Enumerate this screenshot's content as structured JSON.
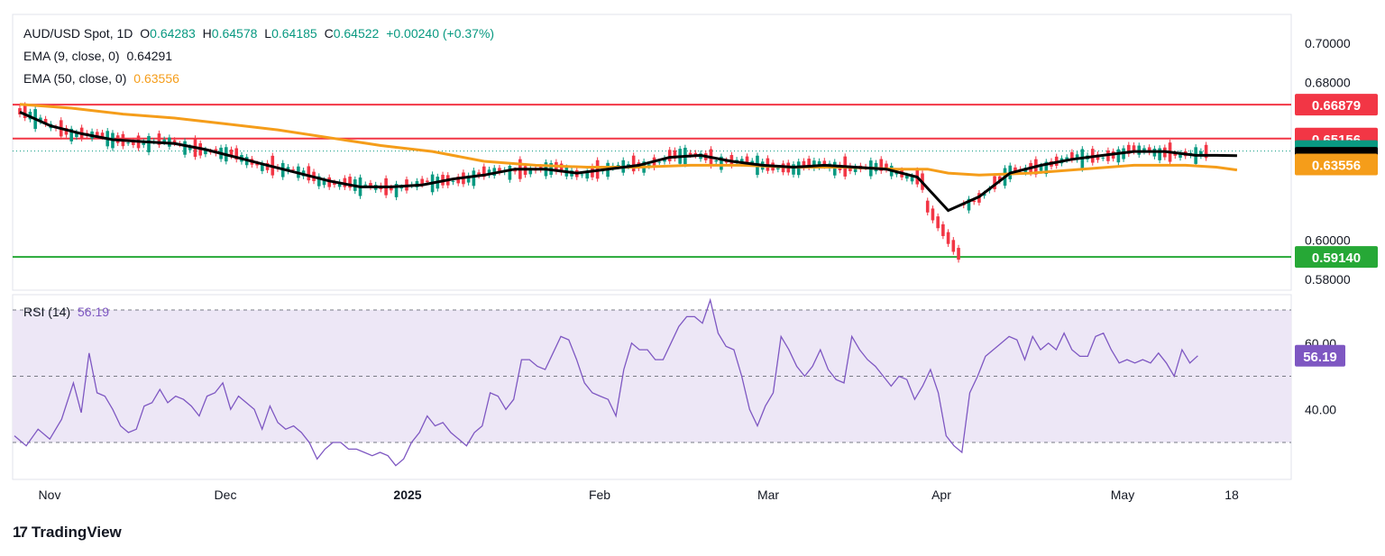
{
  "header": {
    "symbol": "AUD/USD Spot, 1D",
    "o_label": "O",
    "o_value": "0.64283",
    "h_label": "H",
    "h_value": "0.64578",
    "l_label": "L",
    "l_value": "0.64185",
    "c_label": "C",
    "c_value": "0.64522",
    "change": "+0.00240 (+0.37%)"
  },
  "ema9": {
    "label": "EMA (9, close, 0)",
    "value": "0.64291",
    "color": "#000000"
  },
  "ema50": {
    "label": "EMA (50, close, 0)",
    "value": "0.63556",
    "color": "#f59d1a"
  },
  "rsi": {
    "label": "RSI (14)",
    "value": "56.19",
    "color": "#7e57c2"
  },
  "brand": {
    "name": "TradingView"
  },
  "colors": {
    "up": "#089981",
    "down": "#f23645",
    "resistance": "#f23645",
    "support": "#26a836",
    "rsi_band": "#ede7f6"
  },
  "chart_data": [
    {
      "type": "candlestick",
      "title": "AUD/USD Spot, 1D",
      "ylim": [
        0.578,
        0.705
      ],
      "y_ticks": [
        "0.70000",
        "0.68000",
        "0.60000",
        "0.58000"
      ],
      "x_ticks": [
        "Nov",
        "Dec",
        "2025",
        "Feb",
        "Mar",
        "Apr",
        "May",
        "18"
      ],
      "horizontal_lines": [
        {
          "value": 0.66879,
          "label": "0.66879",
          "color": "#f23645"
        },
        {
          "value": 0.65156,
          "label": "0.65156",
          "color": "#f23645"
        },
        {
          "value": 0.5914,
          "label": "0.59140",
          "color": "#26a836"
        }
      ],
      "price_labels": [
        {
          "value": 0.64522,
          "label": "0.64522",
          "color": "#089981"
        },
        {
          "value": 0.64291,
          "label": "0.64291",
          "color": "#000000"
        },
        {
          "value": 0.63556,
          "label": "0.63556",
          "color": "#f59d1a"
        }
      ],
      "last_close": 0.64522,
      "series": [
        {
          "name": "EMA (9, close, 0)",
          "color": "#000000",
          "values": [
            [
              0,
              0.665
            ],
            [
              6,
              0.658
            ],
            [
              12,
              0.654
            ],
            [
              18,
              0.651
            ],
            [
              24,
              0.65
            ],
            [
              30,
              0.649
            ],
            [
              36,
              0.646
            ],
            [
              42,
              0.642
            ],
            [
              48,
              0.638
            ],
            [
              54,
              0.634
            ],
            [
              60,
              0.63
            ],
            [
              66,
              0.627
            ],
            [
              72,
              0.627
            ],
            [
              78,
              0.628
            ],
            [
              84,
              0.631
            ],
            [
              90,
              0.633
            ],
            [
              96,
              0.636
            ],
            [
              102,
              0.636
            ],
            [
              108,
              0.634
            ],
            [
              114,
              0.636
            ],
            [
              120,
              0.638
            ],
            [
              126,
              0.642
            ],
            [
              132,
              0.643
            ],
            [
              138,
              0.64
            ],
            [
              144,
              0.638
            ],
            [
              150,
              0.637
            ],
            [
              156,
              0.638
            ],
            [
              162,
              0.637
            ],
            [
              168,
              0.636
            ],
            [
              174,
              0.632
            ],
            [
              180,
              0.615
            ],
            [
              186,
              0.622
            ],
            [
              192,
              0.634
            ],
            [
              198,
              0.638
            ],
            [
              204,
              0.641
            ],
            [
              210,
              0.643
            ],
            [
              216,
              0.645
            ],
            [
              222,
              0.645
            ],
            [
              228,
              0.643
            ],
            [
              232,
              0.643
            ],
            [
              236,
              0.6429
            ]
          ]
        },
        {
          "name": "EMA (50, close, 0)",
          "color": "#f59d1a",
          "values": [
            [
              0,
              0.669
            ],
            [
              10,
              0.667
            ],
            [
              20,
              0.664
            ],
            [
              30,
              0.662
            ],
            [
              40,
              0.659
            ],
            [
              50,
              0.656
            ],
            [
              60,
              0.652
            ],
            [
              70,
              0.648
            ],
            [
              80,
              0.645
            ],
            [
              90,
              0.64
            ],
            [
              100,
              0.638
            ],
            [
              110,
              0.637
            ],
            [
              120,
              0.637
            ],
            [
              130,
              0.638
            ],
            [
              140,
              0.638
            ],
            [
              150,
              0.637
            ],
            [
              160,
              0.637
            ],
            [
              170,
              0.636
            ],
            [
              176,
              0.636
            ],
            [
              180,
              0.634
            ],
            [
              186,
              0.633
            ],
            [
              196,
              0.634
            ],
            [
              206,
              0.636
            ],
            [
              216,
              0.638
            ],
            [
              226,
              0.638
            ],
            [
              232,
              0.637
            ],
            [
              236,
              0.6356
            ]
          ]
        }
      ]
    },
    {
      "type": "line",
      "title": "RSI (14)",
      "ylim": [
        20,
        75
      ],
      "y_ticks": [
        "60.00",
        "40.00"
      ],
      "bands": [
        30,
        50,
        70
      ],
      "last_value": 56.19,
      "series": [
        {
          "name": "RSI (14)",
          "color": "#7e57c2",
          "values": [
            [
              0,
              32
            ],
            [
              3,
              29
            ],
            [
              6,
              34
            ],
            [
              9,
              31
            ],
            [
              12,
              37
            ],
            [
              15,
              48
            ],
            [
              17,
              39
            ],
            [
              19,
              57
            ],
            [
              21,
              45
            ],
            [
              23,
              44
            ],
            [
              25,
              40
            ],
            [
              27,
              35
            ],
            [
              29,
              33
            ],
            [
              31,
              34
            ],
            [
              33,
              41
            ],
            [
              35,
              42
            ],
            [
              37,
              46
            ],
            [
              39,
              42
            ],
            [
              41,
              44
            ],
            [
              43,
              43
            ],
            [
              45,
              41
            ],
            [
              47,
              38
            ],
            [
              49,
              44
            ],
            [
              51,
              45
            ],
            [
              53,
              48
            ],
            [
              55,
              40
            ],
            [
              57,
              44
            ],
            [
              59,
              42
            ],
            [
              61,
              40
            ],
            [
              63,
              34
            ],
            [
              65,
              41
            ],
            [
              67,
              36
            ],
            [
              69,
              34
            ],
            [
              71,
              35
            ],
            [
              73,
              33
            ],
            [
              75,
              30
            ],
            [
              77,
              25
            ],
            [
              79,
              28
            ],
            [
              81,
              30
            ],
            [
              83,
              30
            ],
            [
              85,
              28
            ],
            [
              87,
              28
            ],
            [
              89,
              27
            ],
            [
              91,
              26
            ],
            [
              93,
              27
            ],
            [
              95,
              26
            ],
            [
              97,
              23
            ],
            [
              99,
              25
            ],
            [
              101,
              30
            ],
            [
              103,
              33
            ],
            [
              105,
              38
            ],
            [
              107,
              35
            ],
            [
              109,
              36
            ],
            [
              111,
              33
            ],
            [
              113,
              31
            ],
            [
              115,
              29
            ],
            [
              117,
              33
            ],
            [
              119,
              35
            ],
            [
              121,
              45
            ],
            [
              123,
              44
            ],
            [
              125,
              40
            ],
            [
              127,
              43
            ],
            [
              129,
              55
            ],
            [
              131,
              55
            ],
            [
              133,
              53
            ],
            [
              135,
              52
            ],
            [
              137,
              57
            ],
            [
              139,
              62
            ],
            [
              141,
              61
            ],
            [
              143,
              55
            ],
            [
              145,
              48
            ],
            [
              147,
              45
            ],
            [
              149,
              44
            ],
            [
              151,
              43
            ],
            [
              153,
              38
            ],
            [
              155,
              52
            ],
            [
              157,
              60
            ],
            [
              159,
              58
            ],
            [
              161,
              58
            ],
            [
              163,
              55
            ],
            [
              165,
              55
            ],
            [
              167,
              60
            ],
            [
              169,
              65
            ],
            [
              171,
              68
            ],
            [
              173,
              68
            ],
            [
              175,
              66
            ],
            [
              177,
              73
            ],
            [
              179,
              63
            ],
            [
              181,
              59
            ],
            [
              183,
              58
            ],
            [
              185,
              50
            ],
            [
              187,
              40
            ],
            [
              189,
              35
            ],
            [
              191,
              41
            ],
            [
              193,
              45
            ],
            [
              195,
              62
            ],
            [
              197,
              58
            ],
            [
              199,
              53
            ],
            [
              201,
              50
            ],
            [
              203,
              53
            ],
            [
              205,
              58
            ],
            [
              207,
              52
            ],
            [
              209,
              49
            ],
            [
              211,
              48
            ],
            [
              213,
              62
            ],
            [
              215,
              58
            ],
            [
              217,
              55
            ],
            [
              219,
              53
            ],
            [
              221,
              50
            ],
            [
              223,
              47
            ],
            [
              225,
              50
            ],
            [
              227,
              49
            ],
            [
              229,
              43
            ],
            [
              231,
              47
            ],
            [
              233,
              52
            ],
            [
              235,
              45
            ],
            [
              237,
              32
            ],
            [
              239,
              29
            ],
            [
              241,
              27
            ],
            [
              243,
              45
            ],
            [
              245,
              50
            ],
            [
              247,
              56
            ],
            [
              249,
              58
            ],
            [
              251,
              60
            ],
            [
              253,
              62
            ],
            [
              255,
              61
            ],
            [
              257,
              55
            ],
            [
              259,
              62
            ],
            [
              261,
              58
            ],
            [
              263,
              60
            ],
            [
              265,
              58
            ],
            [
              267,
              63
            ],
            [
              269,
              58
            ],
            [
              271,
              56
            ],
            [
              273,
              56
            ],
            [
              275,
              62
            ],
            [
              277,
              63
            ],
            [
              279,
              58
            ],
            [
              281,
              54
            ],
            [
              283,
              55
            ],
            [
              285,
              54
            ],
            [
              287,
              55
            ],
            [
              289,
              54
            ],
            [
              291,
              57
            ],
            [
              293,
              54
            ],
            [
              295,
              50
            ],
            [
              297,
              58
            ],
            [
              299,
              54
            ],
            [
              301,
              56.19
            ]
          ]
        }
      ]
    }
  ]
}
